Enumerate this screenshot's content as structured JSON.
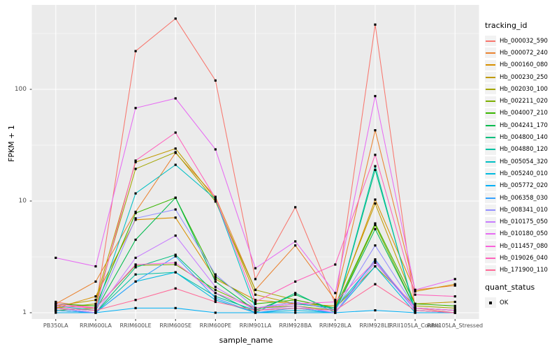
{
  "chart_data": {
    "type": "line",
    "xlabel": "sample_name",
    "ylabel": "FPKM + 1",
    "yscale": "log10",
    "y_ticks": [
      1,
      10,
      100
    ],
    "y_minor": [
      3.162,
      31.62,
      316.2
    ],
    "ylim": [
      0.88,
      570
    ],
    "grid": "on",
    "panel_bg": "#EBEBEB",
    "grid_color": "#FFFFFF",
    "point_color": "#000000",
    "axis_text_color": "#4D4D4D",
    "legend": {
      "title": "tracking_id",
      "position": "right"
    },
    "quant_legend": {
      "title": "quant_status",
      "label": "OK"
    },
    "categories": [
      "PB350LA",
      "RRIM600LA",
      "RRIM600LE",
      "RRIM600SE",
      "RRIM600PE",
      "RRIM901LA",
      "RRIM928BA",
      "RRIM928LA",
      "RRIM928LE",
      "RRII105LA_Control",
      "RRII105LA_Stressed"
    ],
    "series": [
      {
        "name": "Hb_000032_590",
        "color": "#F8766D",
        "values": [
          1.25,
          1.1,
          220,
          430,
          120,
          2.0,
          8.8,
          1.2,
          380,
          1.1,
          1.0
        ]
      },
      {
        "name": "Hb_000072_240",
        "color": "#EA8331",
        "values": [
          1.2,
          1.9,
          8.0,
          27,
          10.9,
          1.6,
          4.0,
          1.3,
          43,
          1.6,
          1.75
        ]
      },
      {
        "name": "Hb_000160_080",
        "color": "#D89000",
        "values": [
          1.1,
          1.4,
          6.8,
          7.1,
          2.0,
          1.3,
          1.2,
          1.1,
          10.3,
          1.55,
          1.8
        ]
      },
      {
        "name": "Hb_000230_250",
        "color": "#C09B00",
        "values": [
          1.15,
          1.3,
          22.3,
          29.5,
          10.4,
          1.45,
          1.2,
          1.15,
          9.5,
          1.2,
          1.25
        ]
      },
      {
        "name": "Hb_002030_100",
        "color": "#A3A500",
        "values": [
          1.1,
          1.2,
          19.4,
          27.4,
          9.9,
          1.6,
          1.3,
          1.1,
          2.6,
          1.15,
          1.1
        ]
      },
      {
        "name": "Hb_002211_020",
        "color": "#7CAE00",
        "values": [
          1.05,
          1.1,
          2.65,
          2.7,
          1.6,
          1.1,
          1.15,
          1.05,
          6.1,
          1.1,
          1.05
        ]
      },
      {
        "name": "Hb_004007_210",
        "color": "#39B600",
        "values": [
          1.2,
          1.15,
          7.8,
          10.7,
          2.1,
          1.2,
          1.3,
          1.1,
          6.3,
          1.2,
          1.15
        ]
      },
      {
        "name": "Hb_004241_170",
        "color": "#00BB4E",
        "values": [
          1.1,
          1.05,
          4.5,
          10.7,
          1.9,
          1.05,
          1.45,
          1.05,
          5.6,
          1.1,
          1.05
        ]
      },
      {
        "name": "Hb_004800_140",
        "color": "#00BF7D",
        "values": [
          1.05,
          1.0,
          2.55,
          3.3,
          1.5,
          1.0,
          1.5,
          1.0,
          19.0,
          1.05,
          1.0
        ]
      },
      {
        "name": "Hb_004880_120",
        "color": "#00C1A3",
        "values": [
          1.1,
          1.0,
          2.2,
          2.3,
          1.4,
          1.05,
          1.1,
          1.0,
          20.5,
          1.0,
          1.0
        ]
      },
      {
        "name": "Hb_005054_320",
        "color": "#00BFC4",
        "values": [
          1.15,
          1.05,
          11.7,
          21.1,
          10.4,
          1.1,
          1.2,
          1.1,
          2.9,
          1.05,
          1.0
        ]
      },
      {
        "name": "Hb_005240_010",
        "color": "#00BAE0",
        "values": [
          1.05,
          1.0,
          1.9,
          2.3,
          1.3,
          1.0,
          1.05,
          1.0,
          2.6,
          1.0,
          1.0
        ]
      },
      {
        "name": "Hb_005772_020",
        "color": "#00B0F6",
        "values": [
          1.0,
          1.0,
          1.1,
          1.1,
          1.0,
          1.0,
          1.0,
          1.0,
          1.05,
          1.0,
          1.0
        ]
      },
      {
        "name": "Hb_006358_030",
        "color": "#35A2FF",
        "values": [
          1.05,
          1.0,
          1.9,
          3.2,
          1.35,
          1.0,
          1.1,
          1.0,
          3.0,
          1.05,
          1.0
        ]
      },
      {
        "name": "Hb_008341_010",
        "color": "#9590FF",
        "values": [
          1.1,
          1.05,
          7.0,
          8.4,
          2.2,
          1.1,
          1.25,
          1.05,
          4.0,
          1.1,
          1.05
        ]
      },
      {
        "name": "Hb_010175_050",
        "color": "#C77CFF",
        "values": [
          1.1,
          1.0,
          3.1,
          4.9,
          1.7,
          1.05,
          1.15,
          1.0,
          2.8,
          1.05,
          1.0
        ]
      },
      {
        "name": "Hb_010180_050",
        "color": "#E76BF3",
        "values": [
          3.1,
          2.6,
          68,
          83,
          29,
          2.5,
          4.35,
          1.5,
          87,
          1.6,
          2.0
        ]
      },
      {
        "name": "Hb_011457_080",
        "color": "#FA62DB",
        "values": [
          1.2,
          1.1,
          2.7,
          2.8,
          1.5,
          1.1,
          1.2,
          1.25,
          2.9,
          1.1,
          1.05
        ]
      },
      {
        "name": "Hb_019026_040",
        "color": "#FF62BC",
        "values": [
          1.15,
          1.1,
          23,
          41,
          10.6,
          1.25,
          1.9,
          2.7,
          25.9,
          1.45,
          1.4
        ]
      },
      {
        "name": "Hb_171900_110",
        "color": "#FF6A98",
        "values": [
          1.1,
          1.05,
          1.3,
          1.65,
          1.25,
          1.05,
          1.1,
          1.05,
          1.8,
          1.05,
          1.0
        ]
      }
    ]
  }
}
